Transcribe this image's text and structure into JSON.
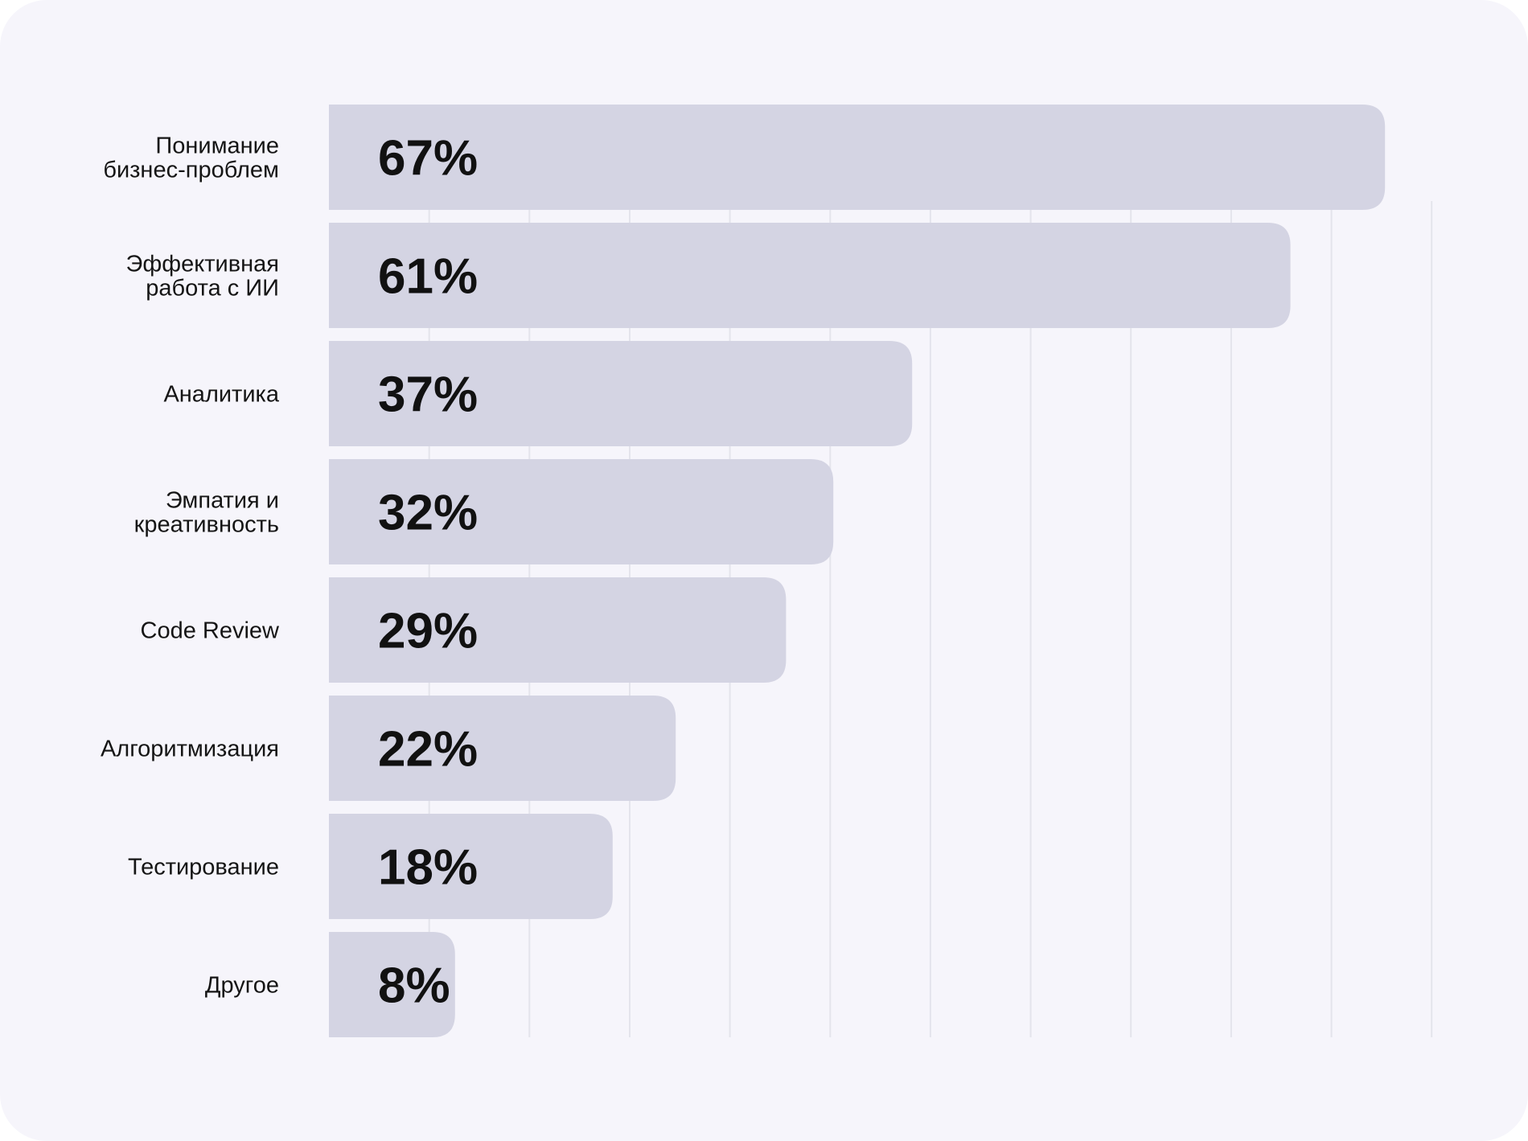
{
  "colors": {
    "background": "#f6f5fb",
    "bar": "#d4d4e3",
    "grid": "#e4e4ec",
    "text": "#111111"
  },
  "chart_data": {
    "type": "bar",
    "orientation": "horizontal",
    "categories": [
      [
        "Понимание",
        "бизнес-проблем"
      ],
      [
        "Эффективная",
        "работа с ИИ"
      ],
      [
        "Аналитика"
      ],
      [
        "Эмпатия и",
        "креативность"
      ],
      [
        "Code Review"
      ],
      [
        "Алгоритмизация"
      ],
      [
        "Тестирование"
      ],
      [
        "Другое"
      ]
    ],
    "values": [
      67,
      61,
      37,
      32,
      29,
      22,
      18,
      8
    ],
    "value_labels": [
      "67%",
      "61%",
      "37%",
      "32%",
      "29%",
      "22%",
      "18%",
      "8%"
    ],
    "xlim": [
      0,
      70
    ],
    "grid": true,
    "gridlines_every": 6.36
  }
}
